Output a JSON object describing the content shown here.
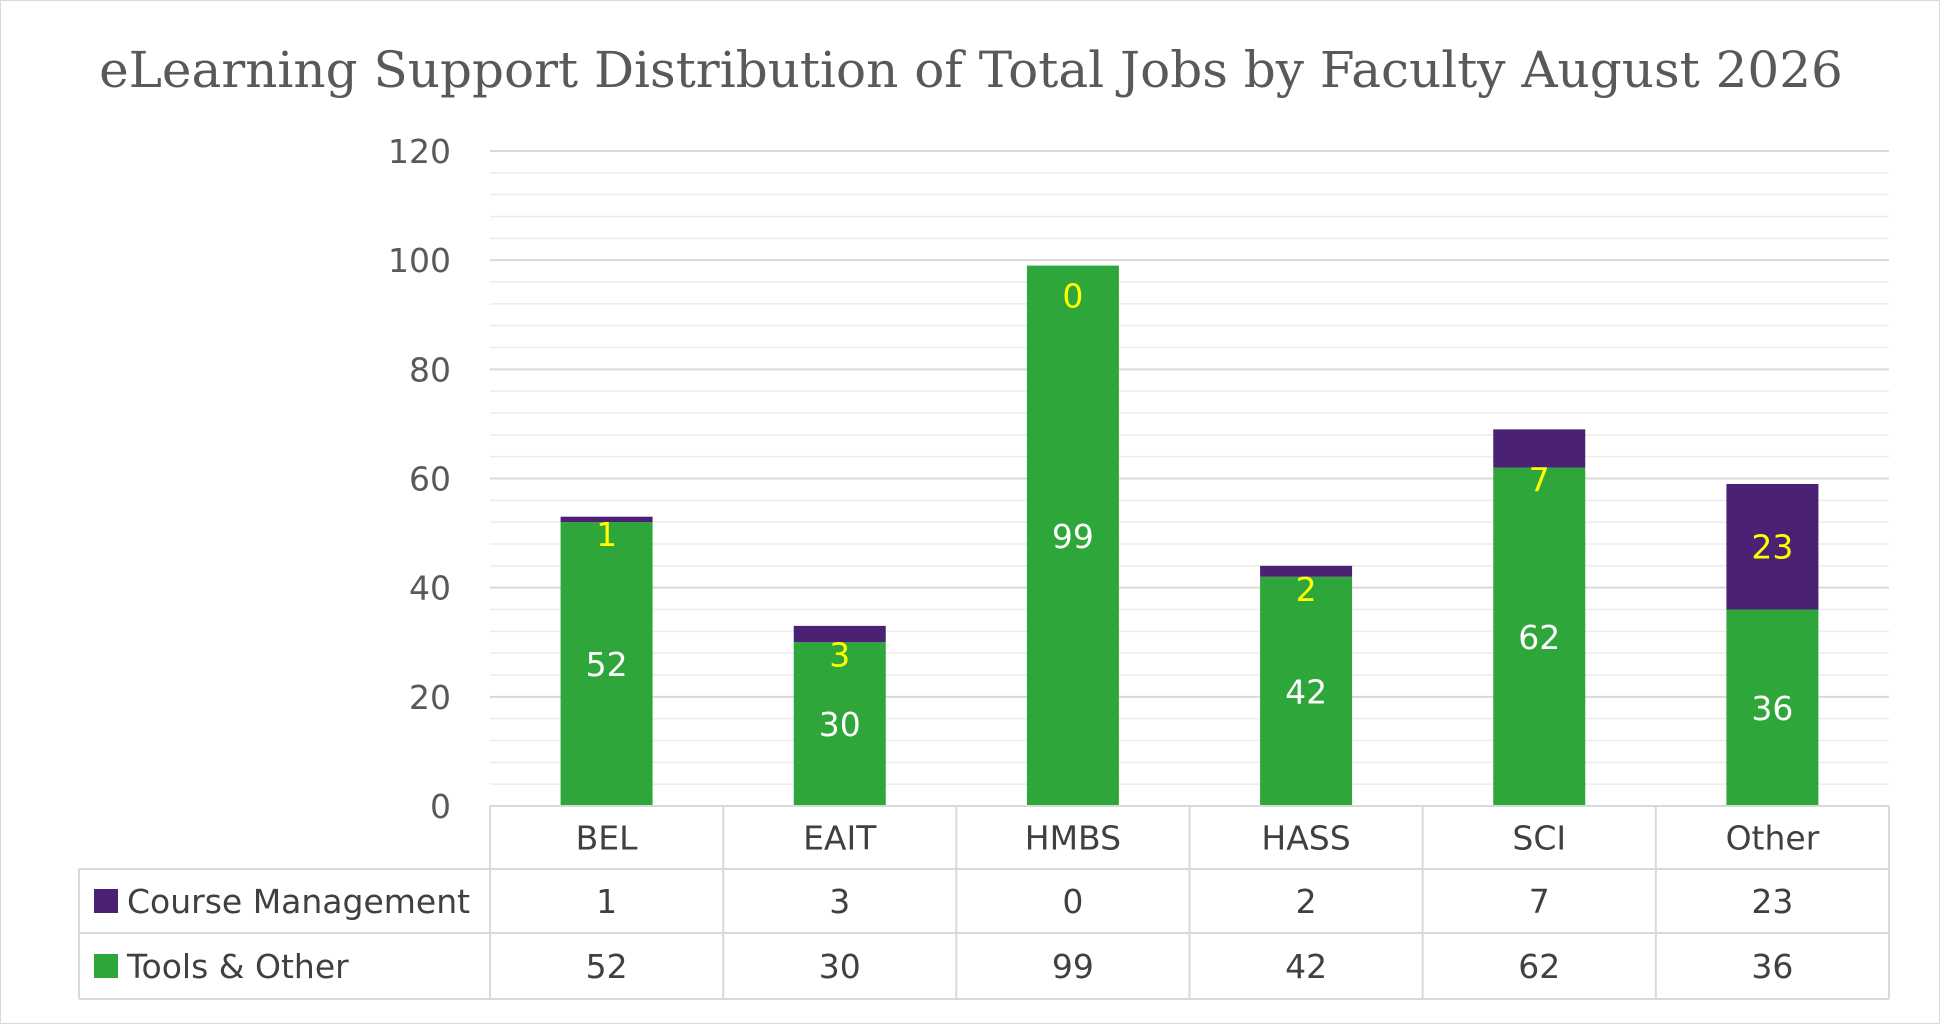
{
  "chart_data": {
    "type": "bar",
    "stacked": true,
    "title": "eLearning Support Distribution of Total Jobs by Faculty August 2026",
    "categories": [
      "BEL",
      "EAIT",
      "HMBS",
      "HASS",
      "SCI",
      "Other"
    ],
    "series": [
      {
        "name": "Tools & Other",
        "values": [
          52,
          30,
          99,
          42,
          62,
          36
        ],
        "color": "#2ea63a",
        "label_color": "#ffffff"
      },
      {
        "name": "Course Management",
        "values": [
          1,
          3,
          0,
          2,
          7,
          23
        ],
        "color": "#4b2173",
        "label_color": "#ffff00"
      }
    ],
    "ylim": [
      0,
      120
    ],
    "yticks": [
      0,
      20,
      40,
      60,
      80,
      100,
      120
    ],
    "grid": true,
    "legend": "data-table",
    "xlabel": "",
    "ylabel": ""
  }
}
